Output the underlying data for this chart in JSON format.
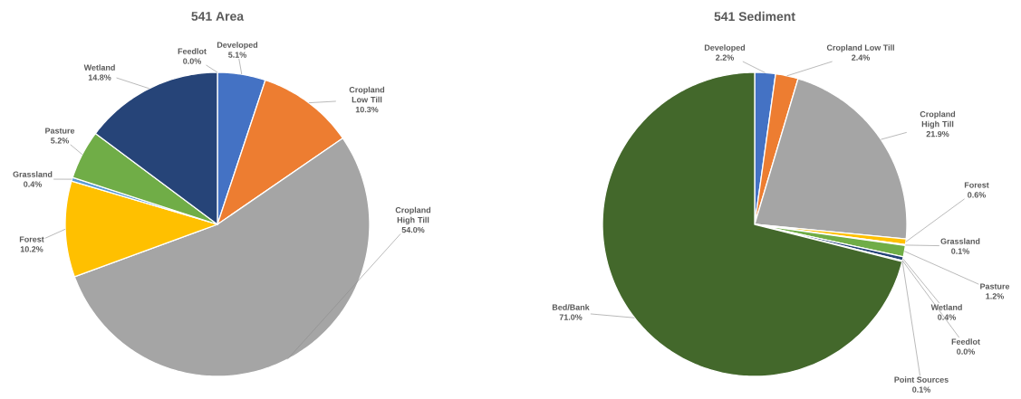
{
  "chart_data": [
    {
      "type": "pie",
      "title": "541 Area",
      "categories": [
        "Developed",
        "Cropland Low Till",
        "Cropland High Till",
        "Forest",
        "Grassland",
        "Pasture",
        "Wetland",
        "Feedlot"
      ],
      "values": [
        5.1,
        10.3,
        54.0,
        10.2,
        0.4,
        5.2,
        14.8,
        0.0
      ],
      "value_labels": [
        "5.1%",
        "10.3%",
        "54.0%",
        "10.2%",
        "0.4%",
        "5.2%",
        "14.8%",
        "0.0%"
      ],
      "colors": [
        "#4472c4",
        "#ed7d31",
        "#a5a5a5",
        "#ffc000",
        "#5b9bd5",
        "#70ad47",
        "#264478",
        "#9e480e"
      ]
    },
    {
      "type": "pie",
      "title": "541 Sediment",
      "categories": [
        "Developed",
        "Cropland Low Till",
        "Cropland High Till",
        "Forest",
        "Grassland",
        "Pasture",
        "Wetland",
        "Feedlot",
        "Point Sources",
        "Bed/Bank"
      ],
      "values": [
        2.2,
        2.4,
        21.9,
        0.6,
        0.1,
        1.2,
        0.4,
        0.0,
        0.1,
        71.0
      ],
      "value_labels": [
        "2.2%",
        "2.4%",
        "21.9%",
        "0.6%",
        "0.1%",
        "1.2%",
        "0.4%",
        "0.0%",
        "0.1%",
        "71.0%"
      ],
      "colors": [
        "#4472c4",
        "#ed7d31",
        "#a5a5a5",
        "#ffc000",
        "#5b9bd5",
        "#70ad47",
        "#264478",
        "#9e480e",
        "#636363",
        "#43682b"
      ]
    }
  ]
}
